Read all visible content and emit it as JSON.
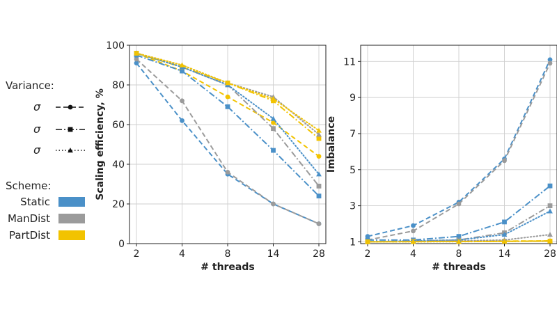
{
  "legend": {
    "variance_title": "Variance:",
    "variance_items": [
      {
        "label_base": "σ",
        "label_sub": "1",
        "label_sup": "2",
        "style": "dashed",
        "marker": "circle"
      },
      {
        "label_base": "σ",
        "label_sub": "2",
        "label_sup": "2",
        "style": "dashdot",
        "marker": "square"
      },
      {
        "label_base": "σ",
        "label_sub": "3",
        "label_sup": "2",
        "style": "dotted",
        "marker": "triangle"
      }
    ],
    "scheme_title": "Scheme:",
    "scheme_items": [
      {
        "label": "Static",
        "color": "#4a90c8"
      },
      {
        "label": "ManDist",
        "color": "#9b9b9b"
      },
      {
        "label": "PartDist",
        "color": "#f2c300"
      }
    ]
  },
  "chart_data": [
    {
      "type": "line",
      "xlabel": "# threads",
      "ylabel": "Scaling efficiency, %",
      "x": [
        "2",
        "4",
        "8",
        "14",
        "28"
      ],
      "yticks": [
        0,
        20,
        40,
        60,
        80,
        100
      ],
      "ylim": [
        0,
        100
      ],
      "grid": true,
      "series": [
        {
          "scheme": "Static",
          "variance": 1,
          "color": "#4a90c8",
          "values": [
            91,
            62,
            35,
            20,
            10
          ]
        },
        {
          "scheme": "ManDist",
          "variance": 1,
          "color": "#9b9b9b",
          "values": [
            93,
            72,
            36,
            20,
            10
          ]
        },
        {
          "scheme": "PartDist",
          "variance": 1,
          "color": "#f2c300",
          "values": [
            96,
            87,
            74,
            61,
            44
          ]
        },
        {
          "scheme": "Static",
          "variance": 2,
          "color": "#4a90c8",
          "values": [
            95,
            87,
            69,
            47,
            24
          ]
        },
        {
          "scheme": "ManDist",
          "variance": 2,
          "color": "#9b9b9b",
          "values": [
            96,
            89,
            80,
            58,
            29
          ]
        },
        {
          "scheme": "PartDist",
          "variance": 2,
          "color": "#f2c300",
          "values": [
            96,
            89,
            81,
            72,
            53
          ]
        },
        {
          "scheme": "Static",
          "variance": 3,
          "color": "#4a90c8",
          "values": [
            96,
            89,
            80,
            63,
            35
          ]
        },
        {
          "scheme": "ManDist",
          "variance": 3,
          "color": "#9b9b9b",
          "values": [
            96,
            90,
            81,
            74,
            55
          ]
        },
        {
          "scheme": "PartDist",
          "variance": 3,
          "color": "#f2c300",
          "values": [
            96,
            90,
            81,
            73,
            57
          ]
        }
      ]
    },
    {
      "type": "line",
      "xlabel": "# threads",
      "ylabel": "Imbalance",
      "x": [
        "2",
        "4",
        "8",
        "14",
        "28"
      ],
      "yticks": [
        1,
        3,
        5,
        7,
        9,
        11
      ],
      "ylim": [
        0.9,
        11.9
      ],
      "grid": true,
      "series": [
        {
          "scheme": "Static",
          "variance": 1,
          "color": "#4a90c8",
          "values": [
            1.3,
            1.9,
            3.2,
            5.6,
            11.1
          ]
        },
        {
          "scheme": "ManDist",
          "variance": 1,
          "color": "#9b9b9b",
          "values": [
            1.1,
            1.6,
            3.1,
            5.5,
            10.9
          ]
        },
        {
          "scheme": "PartDist",
          "variance": 1,
          "color": "#f2c300",
          "values": [
            1.0,
            1.02,
            1.03,
            1.04,
            1.05
          ]
        },
        {
          "scheme": "Static",
          "variance": 2,
          "color": "#4a90c8",
          "values": [
            1.1,
            1.1,
            1.3,
            2.1,
            4.1
          ]
        },
        {
          "scheme": "ManDist",
          "variance": 2,
          "color": "#9b9b9b",
          "values": [
            1.0,
            1.05,
            1.1,
            1.5,
            3.0
          ]
        },
        {
          "scheme": "PartDist",
          "variance": 2,
          "color": "#f2c300",
          "values": [
            1.0,
            1.01,
            1.02,
            1.03,
            1.04
          ]
        },
        {
          "scheme": "Static",
          "variance": 3,
          "color": "#4a90c8",
          "values": [
            1.0,
            1.05,
            1.1,
            1.4,
            2.7
          ]
        },
        {
          "scheme": "ManDist",
          "variance": 3,
          "color": "#9b9b9b",
          "values": [
            1.0,
            1.02,
            1.05,
            1.1,
            1.4
          ]
        },
        {
          "scheme": "PartDist",
          "variance": 3,
          "color": "#f2c300",
          "values": [
            1.0,
            1.0,
            1.01,
            1.02,
            1.05
          ]
        }
      ]
    }
  ]
}
